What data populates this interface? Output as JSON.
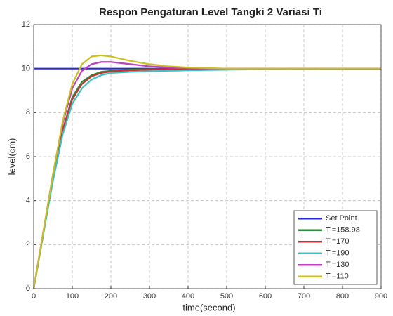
{
  "chart_data": {
    "type": "line",
    "title": "Respon Pengaturan Level Tangki 2 Variasi Ti",
    "x_label": "time(second)",
    "y_label": "level(cm)",
    "x": [
      0,
      25,
      50,
      75,
      100,
      125,
      150,
      175,
      200,
      250,
      300,
      350,
      400,
      500,
      600,
      700,
      800,
      900
    ],
    "series": [
      {
        "name": "Set Point",
        "color": "#2a2ad0",
        "values": [
          10,
          10,
          10,
          10,
          10,
          10,
          10,
          10,
          10,
          10,
          10,
          10,
          10,
          10,
          10,
          10,
          10,
          10
        ]
      },
      {
        "name": "Ti=158.98",
        "color": "#2e8b3a",
        "values": [
          0,
          2.5,
          5.0,
          7.2,
          8.7,
          9.4,
          9.7,
          9.85,
          9.9,
          9.95,
          9.97,
          9.98,
          10,
          10,
          10,
          10,
          10,
          10
        ]
      },
      {
        "name": "Ti=170",
        "color": "#c83232",
        "values": [
          0,
          2.5,
          5.0,
          7.2,
          8.6,
          9.3,
          9.65,
          9.8,
          9.87,
          9.92,
          9.95,
          9.97,
          9.98,
          10,
          10,
          10,
          10,
          10
        ]
      },
      {
        "name": "Ti=190",
        "color": "#3cc0c0",
        "values": [
          0,
          2.5,
          4.9,
          7.0,
          8.4,
          9.1,
          9.5,
          9.7,
          9.8,
          9.85,
          9.88,
          9.9,
          9.92,
          9.95,
          9.97,
          9.98,
          10,
          10
        ]
      },
      {
        "name": "Ti=130",
        "color": "#c040c0",
        "values": [
          0,
          2.6,
          5.2,
          7.5,
          9.1,
          9.9,
          10.2,
          10.3,
          10.3,
          10.2,
          10.1,
          10.05,
          10,
          10,
          10,
          10,
          10,
          10
        ]
      },
      {
        "name": "Ti=110",
        "color": "#c8c020",
        "values": [
          0,
          2.6,
          5.2,
          7.6,
          9.3,
          10.2,
          10.55,
          10.6,
          10.55,
          10.35,
          10.2,
          10.1,
          10.05,
          10,
          10,
          10,
          10,
          10
        ]
      }
    ],
    "xlim": [
      0,
      900
    ],
    "ylim": [
      0,
      12
    ],
    "xticks": [
      0,
      100,
      200,
      300,
      400,
      500,
      600,
      700,
      800,
      900
    ],
    "yticks": [
      0,
      2,
      4,
      6,
      8,
      10,
      12
    ],
    "grid": true,
    "legend": "lower right"
  }
}
